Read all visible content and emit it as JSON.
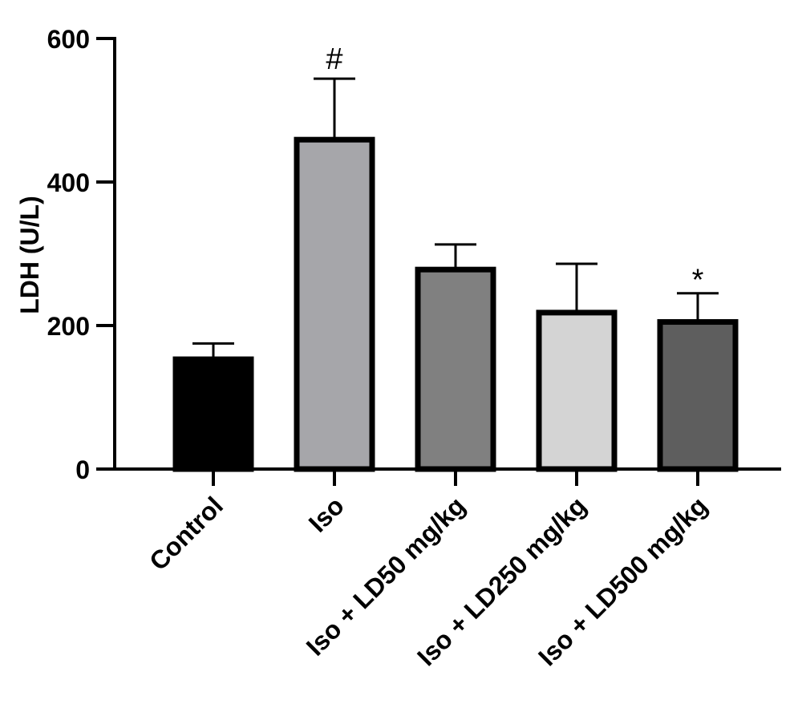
{
  "chart_data": {
    "type": "bar",
    "title": "",
    "xlabel": "",
    "ylabel": "LDH (U/L)",
    "ylim": [
      0,
      600
    ],
    "yticks": [
      0,
      200,
      400,
      600
    ],
    "grid": false,
    "categories": [
      "Control",
      "Iso",
      "Iso + LD50 mg/kg",
      "Iso + LD250 mg/kg",
      "Iso + LD500 mg/kg"
    ],
    "values": [
      153,
      459,
      278,
      218,
      205
    ],
    "errors": [
      22,
      85,
      35,
      68,
      40
    ],
    "annotations": [
      "",
      "#",
      "",
      "",
      "*"
    ],
    "colors": [
      "#000000",
      "#a6a6aa",
      "#808080",
      "#d4d4d4",
      "#5e5e5e"
    ]
  }
}
